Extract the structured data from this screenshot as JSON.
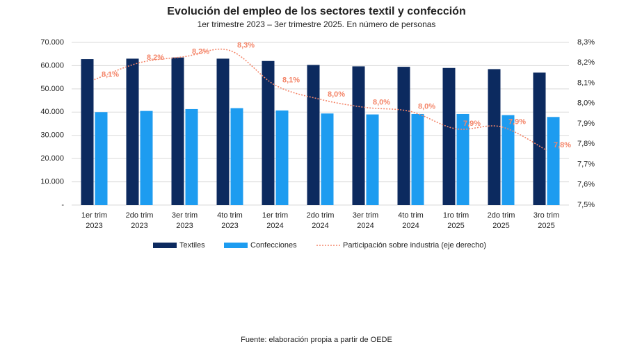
{
  "chart_data": {
    "type": "bar_line",
    "title": "Evolución del empleo de los sectores textil y confección",
    "subtitle": "1er trimestre 2023 – 3er trimestre 2025. En número de personas",
    "source": "Fuente: elaboración propia a partir de OEDE",
    "categories": [
      [
        "1er trim",
        "2023"
      ],
      [
        "2do trim",
        "2023"
      ],
      [
        "3er trim",
        "2023"
      ],
      [
        "4to trim",
        "2023"
      ],
      [
        "1er trim",
        "2024"
      ],
      [
        "2do trim",
        "2024"
      ],
      [
        "3er trim",
        "2024"
      ],
      [
        "4to trim",
        "2024"
      ],
      [
        "1ro trim",
        "2025"
      ],
      [
        "2do trim",
        "2025"
      ],
      [
        "3ro trim",
        "2025"
      ]
    ],
    "series": [
      {
        "name": "Textiles",
        "type": "bar",
        "color": "#0c2a5f",
        "values": [
          62800,
          63000,
          63500,
          63000,
          62000,
          60300,
          59700,
          59500,
          59000,
          58500,
          57000
        ]
      },
      {
        "name": "Confecciones",
        "type": "bar",
        "color": "#1d9cf0",
        "values": [
          40000,
          40500,
          41300,
          41700,
          40700,
          39400,
          39000,
          39200,
          39200,
          38700,
          37900
        ]
      },
      {
        "name": "Participación sobre industria (eje derecho)",
        "type": "line",
        "axis": "y2",
        "color": "#f4866a",
        "values": [
          8.117,
          8.2,
          8.23,
          8.26,
          8.09,
          8.02,
          7.98,
          7.96,
          7.875,
          7.885,
          7.77
        ],
        "value_labels": [
          "8,1%",
          "8,2%",
          "8,2%",
          "8,3%",
          "8,1%",
          "8,0%",
          "8,0%",
          "8,0%",
          "7,9%",
          "7,9%",
          "7,8%"
        ]
      }
    ],
    "ylim": [
      0,
      70000
    ],
    "yticks": [
      {
        "value": 0,
        "label": "-"
      },
      {
        "value": 10000,
        "label": "10.000"
      },
      {
        "value": 20000,
        "label": "20.000"
      },
      {
        "value": 30000,
        "label": "30.000"
      },
      {
        "value": 40000,
        "label": "40.000"
      },
      {
        "value": 50000,
        "label": "50.000"
      },
      {
        "value": 60000,
        "label": "60.000"
      },
      {
        "value": 70000,
        "label": "70.000"
      }
    ],
    "y2lim": [
      7.5,
      8.3
    ],
    "y2ticks": [
      {
        "value": 7.5,
        "label": "7,5%"
      },
      {
        "value": 7.6,
        "label": "7,6%"
      },
      {
        "value": 7.7,
        "label": "7,7%"
      },
      {
        "value": 7.8,
        "label": "7,8%"
      },
      {
        "value": 7.9,
        "label": "7,9%"
      },
      {
        "value": 8.0,
        "label": "8,0%"
      },
      {
        "value": 8.1,
        "label": "8,1%"
      },
      {
        "value": 8.2,
        "label": "8,2%"
      },
      {
        "value": 8.3,
        "label": "8,3%"
      }
    ],
    "grid": true,
    "legend": "bottom"
  }
}
